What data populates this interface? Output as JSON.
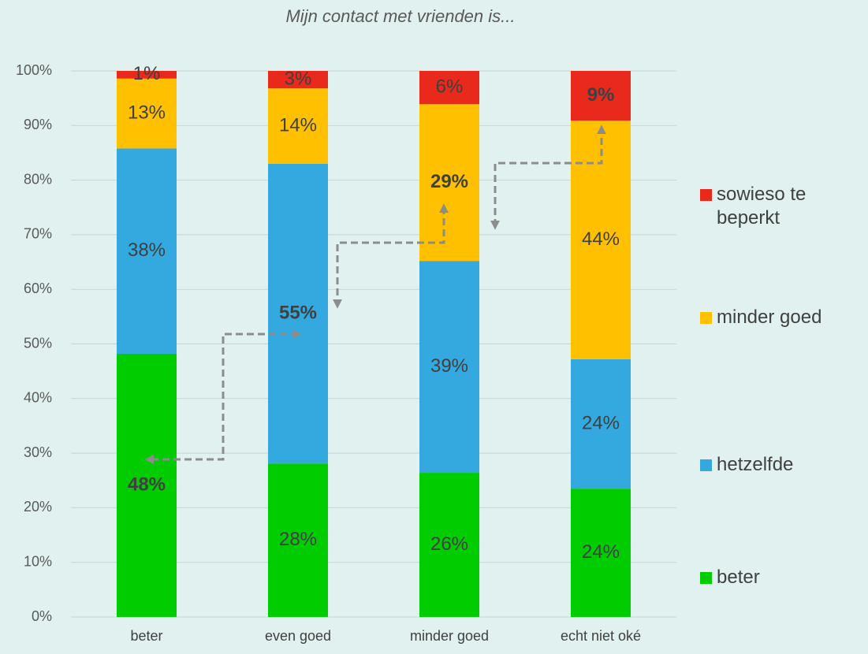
{
  "chart_data": {
    "type": "stacked_bar",
    "title": "Mijn contact met vrienden is...",
    "categories": [
      "beter",
      "even goed",
      "minder goed",
      "echt niet oké"
    ],
    "series": [
      {
        "name": "beter",
        "color": "#00cc00",
        "values": [
          48.2,
          28.1,
          26.4,
          23.5
        ],
        "value_labels": [
          "48%",
          "28%",
          "26%",
          "24%"
        ]
      },
      {
        "name": "hetzelfde",
        "color": "#33a9e0",
        "values": [
          37.6,
          54.9,
          38.8,
          23.7
        ],
        "value_labels": [
          "38%",
          "55%",
          "39%",
          "24%"
        ]
      },
      {
        "name": "minder goed",
        "color": "#ffc000",
        "values": [
          12.8,
          13.8,
          28.7,
          43.7
        ],
        "value_labels": [
          "13%",
          "14%",
          "29%",
          "44%"
        ]
      },
      {
        "name": "sowieso te beperkt",
        "color": "#e8291c",
        "values": [
          1.4,
          3.2,
          6.1,
          9.1
        ],
        "value_labels": [
          "1%",
          "3%",
          "6%",
          "9%"
        ]
      }
    ],
    "ylim": [
      0,
      100
    ],
    "yticks": [
      {
        "value": 0,
        "label": "0%"
      },
      {
        "value": 10,
        "label": "10%"
      },
      {
        "value": 20,
        "label": "20%"
      },
      {
        "value": 30,
        "label": "30%"
      },
      {
        "value": 40,
        "label": "40%"
      },
      {
        "value": 50,
        "label": "50%"
      },
      {
        "value": 60,
        "label": "60%"
      },
      {
        "value": 70,
        "label": "70%"
      },
      {
        "value": 80,
        "label": "80%"
      },
      {
        "value": 90,
        "label": "90%"
      },
      {
        "value": 100,
        "label": "100%"
      }
    ],
    "grid": true,
    "legend": "right"
  }
}
